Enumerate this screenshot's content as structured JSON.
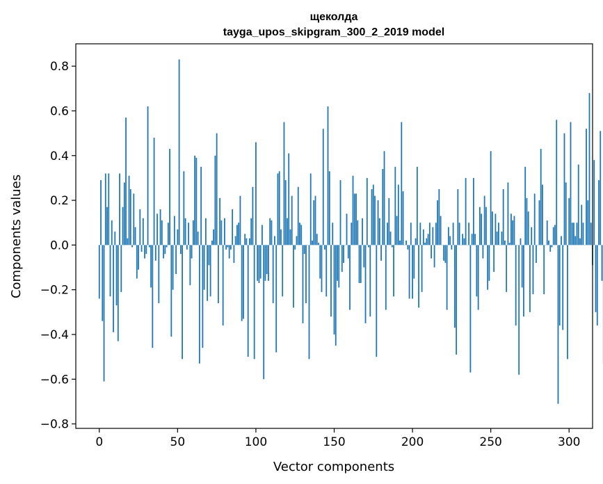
{
  "chart_data": {
    "type": "bar",
    "title": "щеколда",
    "subtitle": "tayga_upos_skipgram_300_2_2019 model",
    "xlabel": "Vector components",
    "ylabel": "Components values",
    "xlim": [
      -15,
      315
    ],
    "ylim": [
      -0.82,
      0.9
    ],
    "xticks": [
      0,
      50,
      100,
      150,
      200,
      250,
      300
    ],
    "yticks": [
      -0.8,
      -0.6,
      -0.4,
      -0.2,
      0.0,
      0.2,
      0.4,
      0.6,
      0.8
    ],
    "grid": false,
    "color": "#1f77b4",
    "values": [
      -0.24,
      0.29,
      -0.34,
      -0.61,
      0.32,
      0.17,
      0.32,
      -0.23,
      0.11,
      -0.39,
      0.06,
      -0.27,
      -0.43,
      0.32,
      -0.21,
      0.17,
      0.28,
      0.57,
      0.03,
      0.31,
      0.25,
      -0.01,
      0.23,
      0.08,
      -0.15,
      -0.11,
      0.16,
      -0.03,
      0.12,
      -0.06,
      -0.04,
      0.62,
      -0.01,
      -0.19,
      -0.46,
      0.48,
      -0.07,
      0.14,
      -0.26,
      0.16,
      0.11,
      -0.06,
      -0.04,
      -0.01,
      0.1,
      0.43,
      -0.41,
      -0.2,
      0.13,
      -0.13,
      0.07,
      0.83,
      -0.04,
      -0.51,
      0.33,
      0.12,
      -0.02,
      0.1,
      -0.18,
      -0.06,
      0.11,
      0.4,
      0.39,
      0.06,
      -0.53,
      0.35,
      -0.46,
      -0.2,
      0.12,
      -0.25,
      -0.09,
      -0.23,
      0.02,
      0.07,
      0.4,
      0.5,
      -0.26,
      0.21,
      0.11,
      -0.36,
      0.12,
      -0.02,
      -0.01,
      -0.06,
      -0.02,
      0.16,
      -0.08,
      0.04,
      0.09,
      0.1,
      0.22,
      -0.34,
      -0.33,
      0.05,
      0.03,
      -0.5,
      0.03,
      0.12,
      0.26,
      -0.51,
      0.46,
      -0.16,
      -0.17,
      -0.15,
      0.09,
      -0.6,
      -0.16,
      -0.13,
      -0.16,
      0.12,
      0.11,
      -0.26,
      0.04,
      -0.48,
      0.32,
      0.33,
      0.07,
      -0.23,
      0.55,
      0.29,
      0.12,
      0.41,
      0.07,
      0.22,
      -0.28,
      -0.02,
      0.04,
      0.26,
      0.1,
      0.09,
      -0.35,
      -0.04,
      -0.26,
      0.0,
      -0.51,
      0.32,
      0.02,
      0.2,
      0.22,
      0.05,
      0.01,
      -0.15,
      -0.21,
      0.52,
      -0.02,
      -0.23,
      0.62,
      0.33,
      -0.32,
      0.1,
      -0.4,
      -0.45,
      -0.16,
      -0.19,
      0.29,
      -0.12,
      -0.08,
      0.0,
      0.14,
      -0.06,
      -0.29,
      0.1,
      0.31,
      0.23,
      0.23,
      0.11,
      -0.17,
      -0.17,
      0.12,
      -0.1,
      -0.35,
      0.3,
      -0.01,
      -0.32,
      0.25,
      0.27,
      0.22,
      -0.5,
      0.2,
      0.12,
      -0.07,
      0.34,
      0.42,
      -0.29,
      0.1,
      0.21,
      0.06,
      -0.01,
      -0.23,
      0.35,
      0.13,
      0.27,
      0.02,
      0.55,
      0.24,
      0.0,
      0.02,
      -0.02,
      -0.24,
      0.1,
      -0.24,
      -0.15,
      0.03,
      0.35,
      -0.28,
      0.1,
      -0.21,
      0.07,
      0.01,
      0.03,
      0.05,
      0.1,
      -0.06,
      0.08,
      -0.1,
      0.1,
      0.2,
      0.25,
      0.13,
      0.0,
      -0.07,
      -0.08,
      -0.29,
      0.08,
      0.04,
      -0.02,
      0.1,
      -0.37,
      -0.49,
      0.25,
      0.1,
      0.0,
      0.05,
      0.03,
      0.3,
      0.0,
      0.1,
      -0.57,
      0.05,
      0.3,
      0.05,
      -0.23,
      -0.29,
      0.17,
      0.14,
      -0.06,
      0.22,
      0.17,
      -0.2,
      -0.16,
      0.42,
      0.15,
      -0.12,
      0.14,
      0.06,
      0.1,
      0.0,
      0.06,
      0.25,
      0.02,
      -0.21,
      0.28,
      0.01,
      0.14,
      0.11,
      0.13,
      -0.36,
      0.0,
      -0.58,
      0.03,
      -0.19,
      -0.32,
      0.35,
      0.21,
      0.15,
      -0.3,
      0.08,
      -0.22,
      0.23,
      -0.08,
      0.0,
      0.2,
      0.43,
      0.27,
      -0.22,
      0.0,
      0.11,
      0.02,
      -0.03,
      -0.01,
      0.08,
      0.09,
      0.56,
      -0.71,
      -0.36,
      0.04,
      -0.38,
      0.5,
      0.28,
      -0.51,
      0.21,
      0.55,
      0.1,
      0.1,
      0.04,
      0.1,
      0.36,
      0.03,
      0.18,
      0.1,
      0.0,
      0.52,
      0.2,
      0.68,
      0.1,
      -0.09,
      0.38,
      -0.3,
      -0.36,
      0.29,
      0.51,
      -0.16,
      -0.53
    ]
  }
}
